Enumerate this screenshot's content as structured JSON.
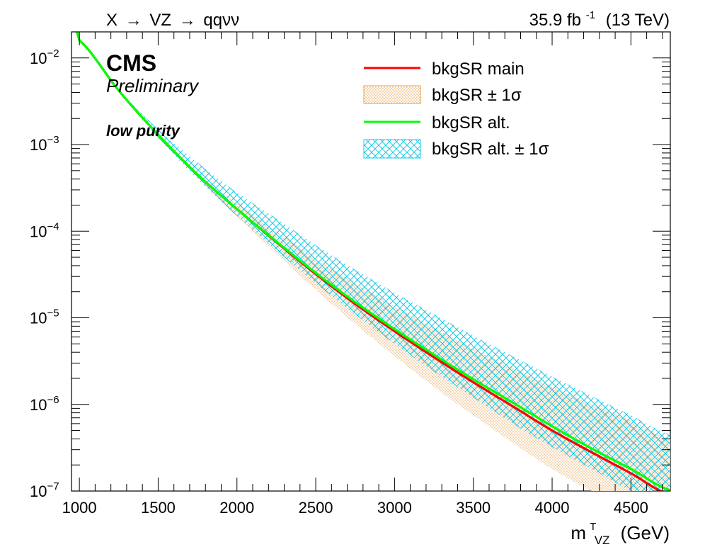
{
  "header": {
    "process_a": "X",
    "process_b": "VZ",
    "process_c": "qqνν",
    "lumi_value": "35.9 fb",
    "lumi_exp": "-1",
    "energy": "(13 TeV)"
  },
  "labels": {
    "experiment": "CMS",
    "status": "Preliminary",
    "category": "low purity"
  },
  "axis": {
    "x_title_m": "m",
    "x_title_sup": "T",
    "x_title_sub": "VZ",
    "x_title_unit": "(GeV)"
  },
  "legend": [
    {
      "label": "bkgSR main",
      "kind": "line",
      "color": "#ff0000"
    },
    {
      "label": "bkgSR ± 1σ",
      "kind": "band-dots",
      "color": "#e8a04e"
    },
    {
      "label": "bkgSR alt.",
      "kind": "line",
      "color": "#00ff00"
    },
    {
      "label": "bkgSR alt. ± 1σ",
      "kind": "band-hatch",
      "color": "#19c8e6"
    }
  ],
  "chart_data": {
    "type": "line",
    "x_scale": "linear",
    "y_scale": "log",
    "xlim": [
      950,
      4750
    ],
    "ylim": [
      1e-07,
      0.02
    ],
    "x_ticks": [
      1000,
      1500,
      2000,
      2500,
      3000,
      3500,
      4000,
      4500
    ],
    "x_tick_labels": [
      "1000",
      "1500",
      "2000",
      "2500",
      "3000",
      "3500",
      "4000",
      "4500"
    ],
    "y_ticks": [
      1e-07,
      1e-06,
      1e-05,
      0.0001,
      0.001,
      0.01
    ],
    "y_tick_labels": [
      {
        "base": "10",
        "exp": "−7"
      },
      {
        "base": "10",
        "exp": "−6"
      },
      {
        "base": "10",
        "exp": "−5"
      },
      {
        "base": "10",
        "exp": "−4"
      },
      {
        "base": "10",
        "exp": "−3"
      },
      {
        "base": "10",
        "exp": "−2"
      }
    ],
    "x": [
      950,
      1000,
      1250,
      1500,
      1750,
      2000,
      2250,
      2500,
      2750,
      3000,
      3250,
      3500,
      3750,
      4000,
      4250,
      4500,
      4750
    ],
    "series": [
      {
        "name": "bkgSR main",
        "color": "#ff0000",
        "values": [
          0.025,
          0.016,
          0.0042,
          0.0013,
          0.00045,
          0.00018,
          7.5e-05,
          3.2e-05,
          1.45e-05,
          7e-06,
          3.5e-06,
          1.8e-06,
          9.5e-07,
          5e-07,
          2.8e-07,
          1.6e-07,
          9e-08
        ]
      },
      {
        "name": "bkgSR alt.",
        "color": "#00ff00",
        "values": [
          0.025,
          0.016,
          0.0042,
          0.0013,
          0.00045,
          0.00018,
          7.6e-05,
          3.3e-05,
          1.52e-05,
          7.4e-06,
          3.75e-06,
          1.95e-06,
          1.05e-06,
          5.6e-07,
          3.1e-07,
          1.8e-07,
          1.02e-07
        ]
      }
    ],
    "bands": [
      {
        "name": "bkgSR ± 1σ",
        "color": "#e8a04e",
        "upper": [
          0.025,
          0.016,
          0.0042,
          0.0013,
          0.00046,
          0.00021,
          0.0001,
          4.8e-05,
          2.5e-05,
          1.35e-05,
          7.6e-06,
          4.4e-06,
          2.65e-06,
          1.6e-06,
          1e-06,
          6.5e-07,
          4e-07
        ],
        "lower": [
          0.025,
          0.016,
          0.0042,
          0.0013,
          0.00043,
          0.00015,
          5.5e-05,
          2.1e-05,
          8.5e-06,
          3.6e-06,
          1.6e-06,
          7.5e-07,
          3.6e-07,
          1.8e-07,
          1e-07,
          6e-08,
          4e-08
        ]
      },
      {
        "name": "bkgSR alt. ± 1σ",
        "color": "#19c8e6",
        "upper": [
          0.025,
          0.016,
          0.0043,
          0.0015,
          0.00062,
          0.00028,
          0.00014,
          6.9e-05,
          3.6e-05,
          1.95e-05,
          1.1e-05,
          6.2e-06,
          3.6e-06,
          2.1e-06,
          1.25e-06,
          7.5e-07,
          4.5e-07
        ],
        "lower": [
          0.025,
          0.016,
          0.0041,
          0.0012,
          0.0004,
          0.00015,
          6e-05,
          2.5e-05,
          1.1e-05,
          5e-06,
          2.4e-06,
          1.2e-06,
          6e-07,
          3.2e-07,
          1.8e-07,
          1e-07,
          6e-08
        ]
      }
    ]
  }
}
